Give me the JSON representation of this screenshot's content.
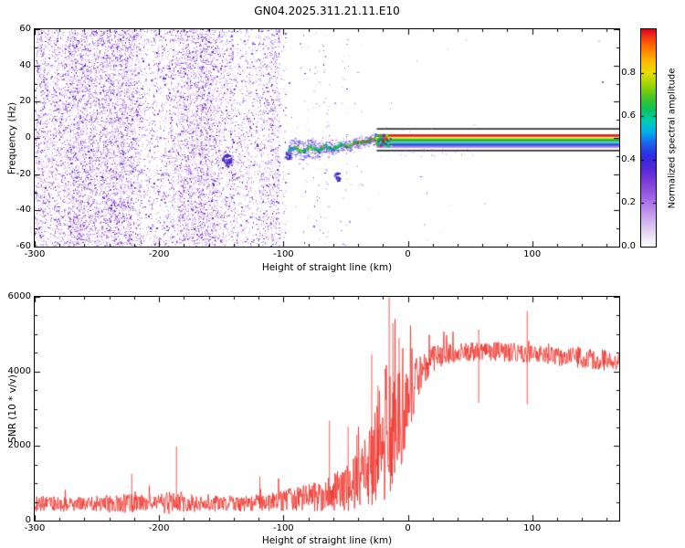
{
  "title": "GN04.2025.311.21.11.E10",
  "colors": {
    "snr_line": "#f03028",
    "axis": "#000000",
    "background": "#ffffff",
    "noise_palette": [
      "#ddc9f6",
      "#bb90ec",
      "#9253e0",
      "#6d2cd6",
      "#4334dd"
    ]
  },
  "colorbar": {
    "label": "Normalized spectral amplitude",
    "tick_labels": [
      "0.0",
      "0.2",
      "0.4",
      "0.6",
      "0.8"
    ],
    "tick_values": [
      0,
      0.2,
      0.4,
      0.6,
      0.8
    ],
    "range": [
      0,
      1
    ],
    "gradient_stops": [
      [
        0.0,
        "#ffffff"
      ],
      [
        0.06,
        "#ead9f7"
      ],
      [
        0.14,
        "#c9a2ee"
      ],
      [
        0.22,
        "#a468e4"
      ],
      [
        0.3,
        "#7d3bda"
      ],
      [
        0.36,
        "#5428d8"
      ],
      [
        0.42,
        "#2d2de0"
      ],
      [
        0.48,
        "#1b6af0"
      ],
      [
        0.53,
        "#00b4e8"
      ],
      [
        0.58,
        "#00cfb0"
      ],
      [
        0.63,
        "#0cc25a"
      ],
      [
        0.68,
        "#3fc428"
      ],
      [
        0.74,
        "#9ad400"
      ],
      [
        0.8,
        "#e6e000"
      ],
      [
        0.86,
        "#ffb400"
      ],
      [
        0.92,
        "#ff7000"
      ],
      [
        0.97,
        "#f03014"
      ],
      [
        1.0,
        "#e00020"
      ]
    ]
  },
  "chart_data": [
    {
      "type": "heatmap",
      "name": "doppler-spectrogram",
      "xlabel": "Height of straight line (km)",
      "ylabel": "Frequency (Hz)",
      "xlim": [
        -300,
        170
      ],
      "ylim": [
        -60,
        60
      ],
      "x_ticks": [
        -300,
        -200,
        -100,
        0,
        100
      ],
      "y_ticks": [
        -60,
        -40,
        -20,
        0,
        20,
        40,
        60
      ],
      "noise": {
        "dense_x_range": [
          -300,
          -103
        ],
        "sparse_x_range": [
          -103,
          -36
        ],
        "white_gaps": [
          [
            -98,
            -86
          ],
          [
            -80,
            -76
          ],
          [
            -63,
            -53
          ],
          [
            -46,
            -39
          ]
        ]
      },
      "blobs": [
        {
          "x": -146,
          "freq": -12
        },
        {
          "x": -57,
          "freq": -21
        },
        {
          "x": -97,
          "freq": -9
        }
      ],
      "signal_trace": {
        "freq_spread_hz": 4,
        "points": [
          [
            -96,
            -7
          ],
          [
            -90,
            -5.5
          ],
          [
            -84,
            -8
          ],
          [
            -78,
            -5
          ],
          [
            -72,
            -7.5
          ],
          [
            -66,
            -4.5
          ],
          [
            -60,
            -6.5
          ],
          [
            -54,
            -3.5
          ],
          [
            -48,
            -5
          ],
          [
            -43,
            -3
          ],
          [
            -38,
            -2.5
          ],
          [
            -33,
            -2
          ],
          [
            -29,
            -1.2
          ],
          [
            -25,
            -0.6
          ]
        ]
      },
      "locked_signal": {
        "x_range": [
          -25,
          170
        ],
        "stripes": [
          {
            "freq": 5.0,
            "height_hz": 0.7,
            "color": "#000000"
          },
          {
            "freq": 1.3,
            "height_hz": 1.4,
            "color": "#e81f10"
          },
          {
            "freq": -0.2,
            "height_hz": 0.8,
            "color": "#e8d400"
          },
          {
            "freq": -1.3,
            "height_hz": 1.4,
            "color": "#12b82a"
          },
          {
            "freq": -2.7,
            "height_hz": 0.8,
            "color": "#00bcd0"
          },
          {
            "freq": -3.8,
            "height_hz": 1.2,
            "color": "#2a35e0"
          },
          {
            "freq": -5.0,
            "height_hz": 0.8,
            "color": "#9a6ae6"
          },
          {
            "freq": -7.0,
            "height_hz": 0.7,
            "color": "#000000"
          }
        ]
      }
    },
    {
      "type": "line",
      "name": "snr-profile",
      "xlabel": "Height of straight line (km)",
      "ylabel": "SNR (10 * v/v)",
      "xlim": [
        -300,
        170
      ],
      "ylim": [
        0,
        6000
      ],
      "x_ticks": [
        -300,
        -200,
        -100,
        0,
        100
      ],
      "y_ticks": [
        0,
        2000,
        4000,
        6000
      ],
      "series": [
        {
          "name": "SNR",
          "color": "#f03028",
          "envelope_x_mean_spread": [
            [
              -300,
              430,
              420
            ],
            [
              -260,
              420,
              380
            ],
            [
              -230,
              440,
              540
            ],
            [
              -205,
              430,
              420
            ],
            [
              -190,
              470,
              720
            ],
            [
              -170,
              430,
              430
            ],
            [
              -140,
              430,
              440
            ],
            [
              -115,
              460,
              500
            ],
            [
              -100,
              520,
              580
            ],
            [
              -85,
              560,
              680
            ],
            [
              -70,
              620,
              820
            ],
            [
              -60,
              700,
              1020
            ],
            [
              -50,
              800,
              1250
            ],
            [
              -40,
              950,
              1600
            ],
            [
              -30,
              1300,
              2300
            ],
            [
              -22,
              1800,
              3300
            ],
            [
              -16,
              2300,
              3900
            ],
            [
              -10,
              2400,
              3100
            ],
            [
              -4,
              2700,
              2500
            ],
            [
              2,
              3200,
              1900
            ],
            [
              10,
              3900,
              1150
            ],
            [
              18,
              4250,
              750
            ],
            [
              30,
              4450,
              540
            ],
            [
              60,
              4520,
              500
            ],
            [
              90,
              4480,
              540
            ],
            [
              120,
              4380,
              520
            ],
            [
              150,
              4300,
              540
            ],
            [
              170,
              4250,
              560
            ]
          ],
          "spikes": [
            [
              -222,
              1250
            ],
            [
              -186,
              1980
            ],
            [
              -119,
              1180
            ],
            [
              -63,
              2680
            ],
            [
              -48,
              2520
            ],
            [
              -41,
              2300
            ],
            [
              -29,
              4450
            ],
            [
              -24,
              3620
            ],
            [
              -15,
              6000
            ],
            [
              -12,
              5300
            ],
            [
              -7,
              4900
            ],
            [
              57,
              5120
            ],
            [
              96,
              5620
            ]
          ]
        }
      ]
    }
  ]
}
